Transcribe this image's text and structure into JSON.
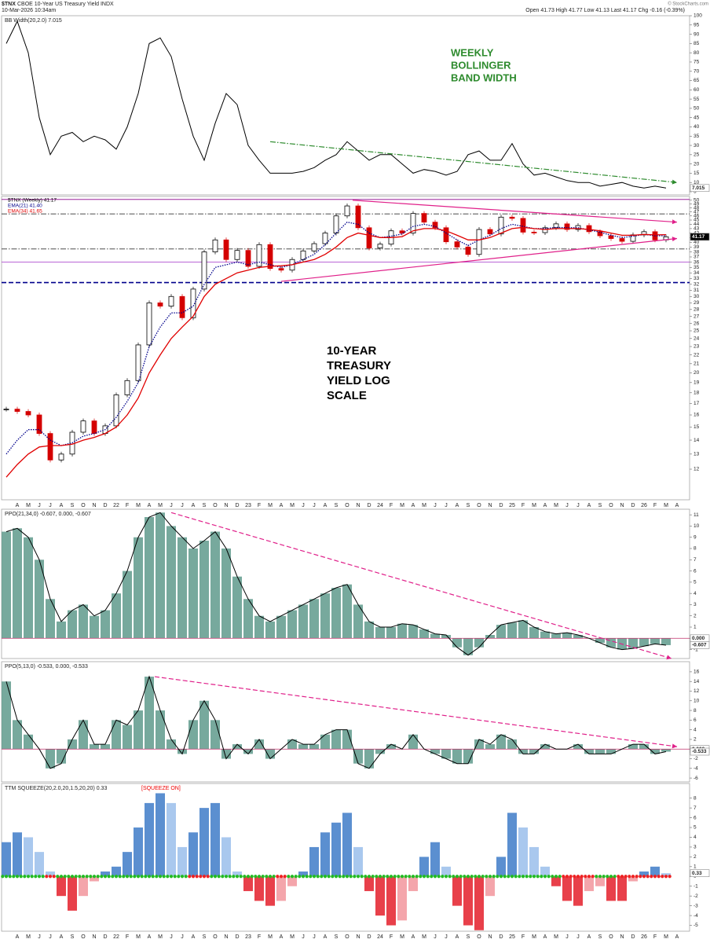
{
  "header": {
    "symbol": "$TNX",
    "title": "CBOE 10-Year US Treasury Yield INDX",
    "date": "10-Mar-2026 10:34am",
    "quote": "Open 41.73 High 41.77 Low 41.13 Last 41.17 Chg -0.16 (-0.39%)",
    "credit": "© StockCharts.com"
  },
  "chart_data": [
    {
      "type": "line",
      "title": "BB Width(20,2.0) 7.015",
      "ylim": [
        3.3,
        100
      ],
      "yticks": [
        5,
        10,
        15,
        20,
        25,
        30,
        35,
        40,
        45,
        50,
        55,
        60,
        65,
        70,
        75,
        80,
        85,
        90,
        95,
        100
      ],
      "series": [
        {
          "name": "BB Width",
          "color": "#000000",
          "values": [
            85,
            97,
            80,
            45,
            25,
            35,
            37,
            32,
            35,
            33,
            28,
            40,
            58,
            85,
            88,
            78,
            55,
            35,
            22,
            42,
            58,
            52,
            30,
            22,
            15,
            15,
            15,
            16,
            18,
            22,
            25,
            32,
            27,
            22,
            25,
            25,
            20,
            15,
            17,
            16,
            14,
            16,
            25,
            27,
            22,
            22,
            31,
            20,
            14,
            15,
            13,
            11,
            10,
            10,
            8,
            9,
            10,
            8,
            7,
            8,
            7.015,
            null
          ]
        }
      ],
      "trendlines": [
        {
          "x": [
            24,
            61
          ],
          "y": [
            32,
            10
          ],
          "color": "#2e8b2e",
          "style": "dashdot"
        }
      ],
      "annotation": [
        "WEEKLY",
        "BOLLINGER",
        "BAND WIDTH"
      ],
      "annotation_color": "#2e8b2e",
      "value_boxes": [
        {
          "value": 7.015,
          "label": "7.015"
        }
      ]
    },
    {
      "type": "candlestick",
      "log": true,
      "ylim": [
        10.2,
        51
      ],
      "yticks": [
        12,
        13,
        14,
        15,
        16,
        17,
        18,
        19,
        20,
        21,
        22,
        23,
        24,
        25,
        26,
        27,
        28,
        29,
        30,
        31,
        32,
        33,
        34,
        35,
        36,
        37,
        38,
        39,
        40,
        41,
        42,
        43,
        44,
        45,
        46,
        47,
        48,
        49,
        50
      ],
      "categories": [
        null,
        "A",
        "M",
        "J",
        "J",
        "A",
        "S",
        "O",
        "N",
        "D",
        "22",
        "F",
        "M",
        "A",
        "M",
        "J",
        "J",
        "A",
        "S",
        "O",
        "N",
        "D",
        "23",
        "F",
        "M",
        "A",
        "M",
        "J",
        "J",
        "A",
        "S",
        "O",
        "N",
        "D",
        "24",
        "F",
        "M",
        "A",
        "M",
        "J",
        "J",
        "A",
        "S",
        "O",
        "N",
        "D",
        "25",
        "F",
        "M",
        "A",
        "M",
        "J",
        "J",
        "A",
        "S",
        "O",
        "N",
        "D",
        "26",
        "F",
        "M",
        "A"
      ],
      "series": [
        {
          "name": "$TNX (Weekly) 41.17",
          "color": "#000000",
          "down_color": "#d40000",
          "values": [
            16.5,
            16.3,
            16,
            14.5,
            12.6,
            13,
            14.6,
            15.5,
            14.5,
            15.1,
            17.8,
            19.2,
            23.2,
            29,
            28.5,
            30,
            26.8,
            31.2,
            38,
            40.5,
            36.5,
            38.3,
            35.2,
            39.5,
            34.8,
            34.5,
            36.5,
            38.2,
            39.7,
            42,
            46,
            48.5,
            43.2,
            38.8,
            39.6,
            42.5,
            42,
            46.6,
            44.5,
            43.2,
            40.1,
            39,
            37.5,
            42.8,
            41.8,
            45.7,
            45.4,
            42.2,
            42.1,
            43.2,
            44.1,
            42.8,
            43.7,
            42.3,
            41.4,
            40.8,
            40.2,
            41.6,
            42.3,
            40.5,
            41.17,
            null
          ]
        },
        {
          "name": "EMA(21) 41.40",
          "color": "#00008b",
          "style": "dotted",
          "values": [
            13,
            14,
            14.8,
            14.8,
            14,
            13.6,
            13.8,
            14.3,
            14.5,
            14.8,
            15.8,
            17.2,
            19,
            23,
            25.5,
            27.5,
            27.5,
            28.5,
            32,
            35,
            35.5,
            36,
            35.5,
            36,
            35.5,
            35,
            35.5,
            36.5,
            37.5,
            39.5,
            42,
            44.5,
            44,
            42,
            41,
            41.3,
            41.8,
            43.5,
            44,
            43.5,
            42,
            40.5,
            39.3,
            40.5,
            41.5,
            43,
            44,
            43.5,
            43,
            43,
            43.3,
            43.2,
            43.2,
            42.7,
            42.2,
            41.5,
            41,
            41.3,
            41.7,
            41.4,
            41.4,
            null
          ]
        },
        {
          "name": "EMA(34) 41.65",
          "color": "#e00000",
          "style": "solid",
          "values": [
            11.5,
            12.3,
            13,
            13.5,
            13.6,
            13.6,
            13.7,
            14,
            14.2,
            14.5,
            15,
            16,
            17.5,
            20,
            22,
            24,
            25.5,
            27,
            30,
            32,
            33,
            34,
            34.5,
            35,
            35.2,
            35.3,
            35.5,
            36,
            36.5,
            37.5,
            39,
            41,
            42,
            41.5,
            41,
            41,
            41.2,
            42.5,
            43,
            43,
            42.5,
            41.5,
            40.5,
            40.5,
            41,
            42,
            43,
            43.3,
            43,
            42.8,
            43,
            43,
            43,
            42.8,
            42.5,
            42,
            41.5,
            41.5,
            41.7,
            41.6,
            41.65,
            null
          ]
        }
      ],
      "hlines": [
        {
          "value": 50.2,
          "color": "#8b008b",
          "style": "solid"
        },
        {
          "value": 46.5,
          "color": "#333333",
          "style": "dashdot"
        },
        {
          "value": 38.6,
          "color": "#333333",
          "style": "dashdot"
        },
        {
          "value": 36,
          "color": "#b050d0",
          "style": "solid"
        },
        {
          "value": 32.3,
          "color": "#00008b",
          "style": "dashed"
        }
      ],
      "trendlines": [
        {
          "x": [
            31.5,
            61
          ],
          "y": [
            50,
            44.5
          ],
          "color": "#e0208a",
          "style": "solid"
        },
        {
          "x": [
            25,
            61
          ],
          "y": [
            32.5,
            40.8
          ],
          "color": "#e0208a",
          "style": "solid"
        }
      ],
      "annotation": [
        "10-YEAR",
        "TREASURY",
        "YIELD LOG",
        "SCALE"
      ],
      "annotation_color": "#000000",
      "value_boxes": [
        {
          "value": 41.17,
          "label": "41.17"
        }
      ]
    },
    {
      "type": "histogram",
      "title": "PPO(21,34,0) -0.607, 0.000, -0.607",
      "ylim": [
        -1.8,
        11.5
      ],
      "yticks": [
        -1,
        0,
        1,
        2,
        3,
        4,
        5,
        6,
        7,
        8,
        9,
        10,
        11
      ],
      "series": [
        {
          "name": "PPO",
          "color": "#5f9a8c",
          "values": [
            9.5,
            9.8,
            9,
            7,
            3.5,
            1.5,
            2.5,
            3,
            2,
            2.5,
            4,
            6,
            9,
            10.8,
            11.2,
            10,
            9,
            8,
            8.7,
            9.5,
            8,
            5.5,
            3.5,
            2,
            1.5,
            2,
            2.5,
            3,
            3.5,
            4,
            4.5,
            4.8,
            3,
            1.5,
            1,
            1,
            1.3,
            1.2,
            0.8,
            0.4,
            0.3,
            -0.8,
            -1.5,
            -0.8,
            0.3,
            1.2,
            1.4,
            1.6,
            1,
            0.6,
            0.4,
            0.5,
            0.3,
            0,
            -0.4,
            -0.8,
            -1,
            -0.9,
            -0.7,
            -0.5,
            -0.607,
            null
          ]
        }
      ],
      "trendlines": [
        {
          "x": [
            15,
            60.5
          ],
          "y": [
            11.2,
            -1.8
          ],
          "color": "#e0208a",
          "style": "dashed"
        }
      ],
      "value_boxes": [
        {
          "value": 0,
          "label": "0.000"
        },
        {
          "value": -0.607,
          "label": "-0.607"
        }
      ]
    },
    {
      "type": "histogram",
      "title": "PPO(5,13,0) -0.533, 0.000, -0.533",
      "ylim": [
        -6.8,
        18.1
      ],
      "yticks": [
        -6,
        -4,
        -2,
        0,
        2,
        4,
        6,
        8,
        10,
        12,
        14,
        16
      ],
      "series": [
        {
          "name": "PPO",
          "color": "#5f9a8c",
          "values": [
            14,
            6,
            3,
            0,
            -4,
            -3,
            2,
            6,
            1,
            1,
            6,
            5,
            8,
            15,
            8,
            2,
            -1,
            6,
            10,
            6,
            -2,
            1,
            -1,
            2,
            -2,
            0,
            2,
            1,
            1,
            3,
            4,
            4,
            -3,
            -4,
            -1,
            1,
            0,
            3,
            0,
            -1,
            -2,
            -3,
            -3,
            2,
            1,
            3,
            2,
            -1,
            -1,
            1,
            0,
            0,
            1,
            -1,
            -1,
            -1,
            0,
            1,
            1,
            -1,
            -0.533,
            null
          ]
        }
      ],
      "trendlines": [
        {
          "x": [
            13.5,
            61
          ],
          "y": [
            15,
            0.5
          ],
          "color": "#e0208a",
          "style": "dashed"
        }
      ],
      "value_boxes": [
        {
          "value": 0,
          "label": "0.000"
        },
        {
          "value": -0.533,
          "label": "-0.533"
        }
      ]
    },
    {
      "type": "squeeze",
      "title": "TTM SQUEEZE(20,2.0,20,1.5,20,20) 0.33",
      "status": "[SQUEEZE ON]",
      "ylim": [
        -5.6,
        9.5
      ],
      "yticks": [
        -5,
        -4,
        -3,
        -2,
        -1,
        0,
        1,
        2,
        3,
        4,
        5,
        6,
        7,
        8
      ],
      "series": [
        {
          "name": "TTM Squeeze",
          "color": "#5b8fd0",
          "light_color": "#a9c8ee",
          "down_color": "#e8404a",
          "down_light_color": "#f4a5ab",
          "values": [
            3.5,
            4.5,
            4,
            2.5,
            0.5,
            -2,
            -3.5,
            -2,
            -0.5,
            0.5,
            1,
            2.5,
            5,
            7.5,
            8.5,
            7.5,
            3,
            4.5,
            7,
            7.5,
            4,
            0.5,
            -1.5,
            -2.5,
            -3,
            -2.5,
            -1,
            0.5,
            3,
            4.5,
            5.5,
            6.5,
            3,
            -1.5,
            -4,
            -5,
            -4.5,
            -1.5,
            2,
            3.5,
            1,
            -3,
            -5,
            -5.5,
            -2,
            2,
            6.5,
            5,
            3,
            1,
            -1,
            -2.5,
            -3,
            -1.5,
            -1,
            -2.5,
            -2.5,
            -0.5,
            0.5,
            1,
            0.33,
            null
          ]
        }
      ],
      "squeeze_on": [
        0,
        0,
        0,
        0,
        1,
        0,
        0,
        0,
        0,
        0,
        0,
        0,
        0,
        0,
        0,
        0,
        0,
        1,
        1,
        0,
        0,
        0,
        0,
        0,
        0,
        1,
        0,
        0,
        0,
        0,
        0,
        0,
        0,
        0,
        0,
        0,
        0,
        0,
        0,
        0,
        0,
        0,
        0,
        0,
        0,
        0,
        0,
        0,
        0,
        0,
        0,
        1,
        1,
        1,
        0,
        0,
        1,
        1,
        1,
        1,
        1,
        null
      ],
      "squeeze_colors": [
        "#22bb22",
        "#ee2222"
      ],
      "value_boxes": [
        {
          "value": 0.33,
          "label": "0.33"
        }
      ]
    }
  ]
}
